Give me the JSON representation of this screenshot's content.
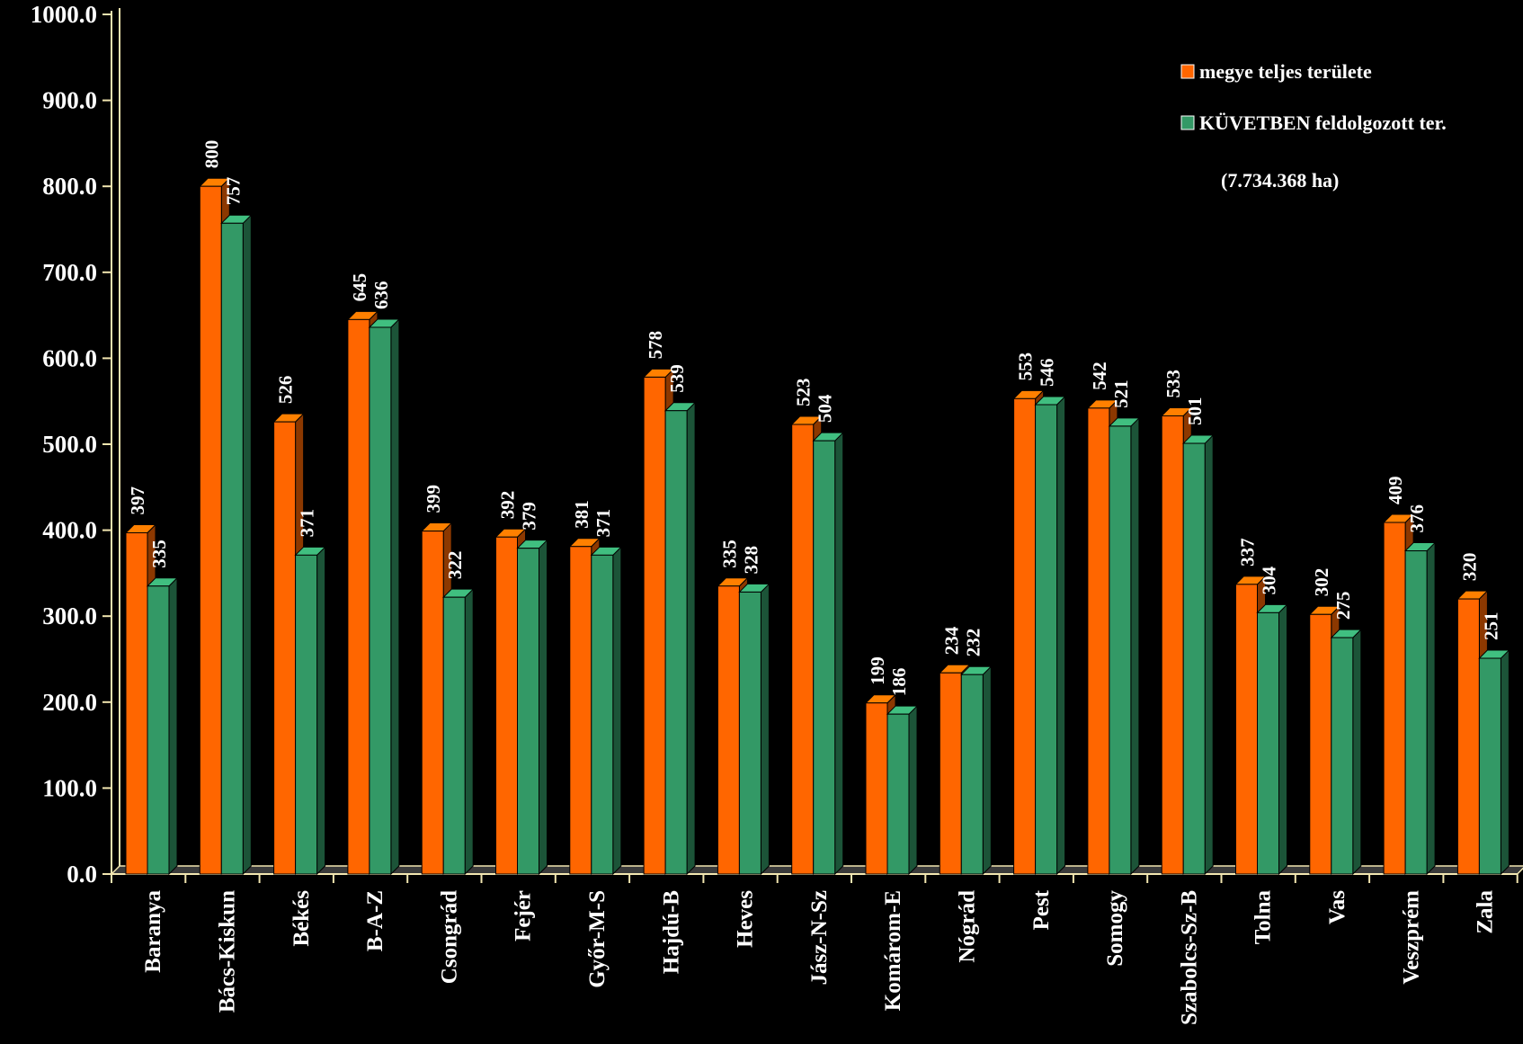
{
  "chart_data": {
    "type": "bar",
    "title": "",
    "xlabel": "",
    "ylabel": "",
    "ylim": [
      0,
      1000
    ],
    "y_ticks": [
      "0.0",
      "100.0",
      "200.0",
      "300.0",
      "400.0",
      "500.0",
      "600.0",
      "700.0",
      "800.0",
      "900.0",
      "1000.0"
    ],
    "categories": [
      "Baranya",
      "Bács-Kiskun",
      "Békés",
      "B-A-Z",
      "Csongrád",
      "Fejér",
      "Győr-M-S",
      "Hajdú-B",
      "Heves",
      "Jász-N-Sz",
      "Komárom-E",
      "Nógrád",
      "Pest",
      "Somogy",
      "Szabolcs-Sz-B",
      "Tolna",
      "Vas",
      "Veszprém",
      "Zala"
    ],
    "series": [
      {
        "name": "megye teljes területe",
        "color": "#FF6600",
        "values": [
          397,
          800,
          526,
          645,
          399,
          392,
          381,
          578,
          335,
          523,
          199,
          234,
          553,
          542,
          533,
          337,
          302,
          409,
          320
        ]
      },
      {
        "name": "KÜVETBEN feldolgozott ter.",
        "color": "#339966",
        "values": [
          335,
          757,
          371,
          636,
          322,
          379,
          371,
          539,
          328,
          504,
          186,
          232,
          546,
          521,
          501,
          304,
          275,
          376,
          251
        ]
      }
    ],
    "legend_note": "(7.734.368 ha)",
    "legend_position": "top-right",
    "grid": false
  }
}
